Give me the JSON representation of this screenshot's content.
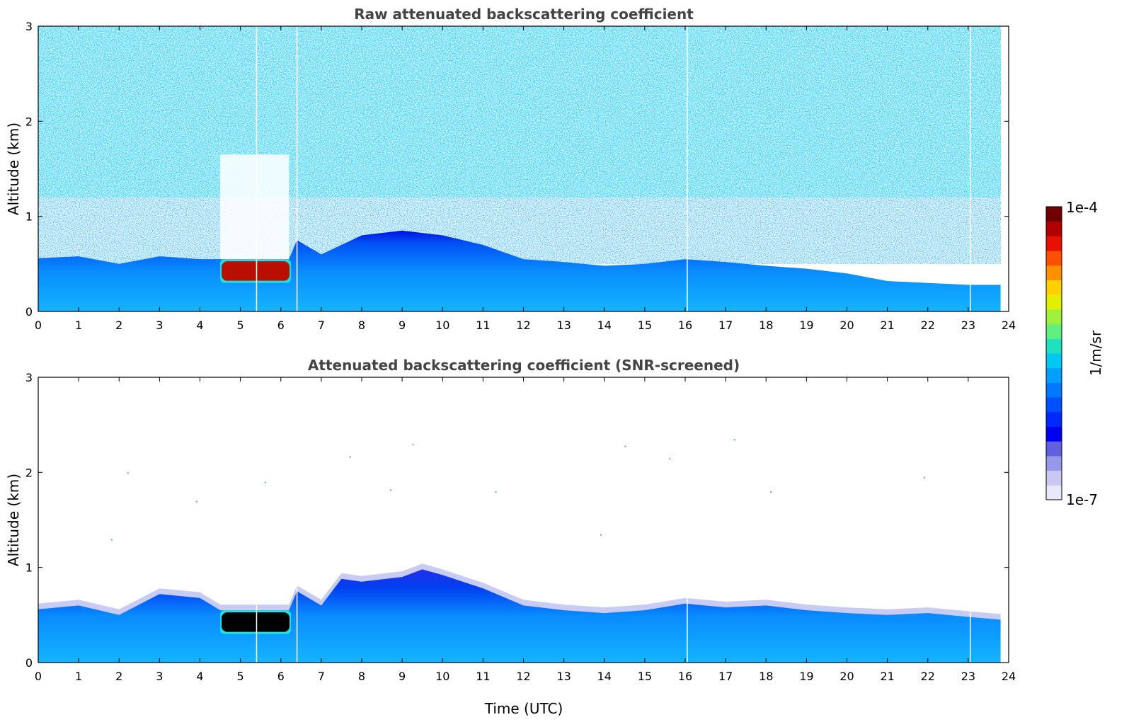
{
  "chart_data": [
    {
      "type": "heatmap",
      "title": "Raw attenuated backscattering coefficient",
      "xlabel": "",
      "ylabel": "Altitude (km)",
      "xlim": [
        0,
        24
      ],
      "ylim": [
        0,
        3
      ],
      "xticks": [
        "0",
        "1",
        "2",
        "3",
        "4",
        "5",
        "6",
        "7",
        "8",
        "9",
        "10",
        "11",
        "12",
        "13",
        "14",
        "15",
        "16",
        "17",
        "18",
        "19",
        "20",
        "21",
        "22",
        "23",
        "24"
      ],
      "yticks": [
        "0",
        "1",
        "2",
        "3"
      ],
      "data_extent_x": [
        0,
        23.8
      ],
      "boundary_layer_top_km": [
        {
          "x": 0,
          "y": 0.56
        },
        {
          "x": 1,
          "y": 0.58
        },
        {
          "x": 2,
          "y": 0.5
        },
        {
          "x": 3,
          "y": 0.58
        },
        {
          "x": 4,
          "y": 0.55
        },
        {
          "x": 4.5,
          "y": 0.55
        },
        {
          "x": 6.2,
          "y": 0.55
        },
        {
          "x": 6.4,
          "y": 0.75
        },
        {
          "x": 7,
          "y": 0.6
        },
        {
          "x": 8,
          "y": 0.8
        },
        {
          "x": 9,
          "y": 0.85
        },
        {
          "x": 10,
          "y": 0.8
        },
        {
          "x": 11,
          "y": 0.7
        },
        {
          "x": 12,
          "y": 0.55
        },
        {
          "x": 13,
          "y": 0.52
        },
        {
          "x": 14,
          "y": 0.48
        },
        {
          "x": 15,
          "y": 0.5
        },
        {
          "x": 16,
          "y": 0.55
        },
        {
          "x": 17,
          "y": 0.52
        },
        {
          "x": 18,
          "y": 0.48
        },
        {
          "x": 19,
          "y": 0.45
        },
        {
          "x": 20,
          "y": 0.4
        },
        {
          "x": 21,
          "y": 0.32
        },
        {
          "x": 22,
          "y": 0.3
        },
        {
          "x": 23,
          "y": 0.28
        },
        {
          "x": 23.8,
          "y": 0.28
        }
      ],
      "cloud_layer": {
        "x_start": 4.5,
        "x_end": 6.25,
        "y_bottom": 0.33,
        "y_top": 0.52,
        "color": "#b81000"
      },
      "low_signal_gap": {
        "x_start": 4.5,
        "x_end": 6.2,
        "y_bottom": 0.52,
        "y_top": 1.65
      },
      "missing_profiles_x": [
        5.4,
        6.4,
        16.05,
        23.05
      ],
      "noise": "scattered noise from 0.5 km to 3 km"
    },
    {
      "type": "heatmap",
      "title": "Attenuated backscattering coefficient (SNR-screened)",
      "xlabel": "Time (UTC)",
      "ylabel": "Altitude (km)",
      "xlim": [
        0,
        24
      ],
      "ylim": [
        0,
        3
      ],
      "xticks": [
        "0",
        "1",
        "2",
        "3",
        "4",
        "5",
        "6",
        "7",
        "8",
        "9",
        "10",
        "11",
        "12",
        "13",
        "14",
        "15",
        "16",
        "17",
        "18",
        "19",
        "20",
        "21",
        "22",
        "23",
        "24"
      ],
      "yticks": [
        "0",
        "1",
        "2",
        "3"
      ],
      "data_extent_x": [
        0,
        23.8
      ],
      "boundary_layer_top_km": [
        {
          "x": 0,
          "y": 0.56
        },
        {
          "x": 1,
          "y": 0.6
        },
        {
          "x": 2,
          "y": 0.5
        },
        {
          "x": 3,
          "y": 0.72
        },
        {
          "x": 4,
          "y": 0.68
        },
        {
          "x": 4.5,
          "y": 0.55
        },
        {
          "x": 6.2,
          "y": 0.55
        },
        {
          "x": 6.4,
          "y": 0.75
        },
        {
          "x": 7,
          "y": 0.6
        },
        {
          "x": 7.5,
          "y": 0.88
        },
        {
          "x": 8,
          "y": 0.85
        },
        {
          "x": 9,
          "y": 0.9
        },
        {
          "x": 9.5,
          "y": 0.98
        },
        {
          "x": 10,
          "y": 0.92
        },
        {
          "x": 11,
          "y": 0.78
        },
        {
          "x": 12,
          "y": 0.6
        },
        {
          "x": 13,
          "y": 0.55
        },
        {
          "x": 14,
          "y": 0.52
        },
        {
          "x": 15,
          "y": 0.55
        },
        {
          "x": 16,
          "y": 0.62
        },
        {
          "x": 17,
          "y": 0.58
        },
        {
          "x": 18,
          "y": 0.6
        },
        {
          "x": 19,
          "y": 0.55
        },
        {
          "x": 20,
          "y": 0.52
        },
        {
          "x": 21,
          "y": 0.5
        },
        {
          "x": 22,
          "y": 0.52
        },
        {
          "x": 23,
          "y": 0.48
        },
        {
          "x": 23.8,
          "y": 0.45
        }
      ],
      "cloud_layer": {
        "x_start": 4.5,
        "x_end": 6.25,
        "y_bottom": 0.33,
        "y_top": 0.52,
        "color": "#000000"
      },
      "missing_profiles_x": [
        5.4,
        6.4,
        16.05,
        23.05
      ],
      "isolated_points": [
        {
          "x": 1.8,
          "y": 1.3
        },
        {
          "x": 2.2,
          "y": 2.0
        },
        {
          "x": 3.9,
          "y": 1.7
        },
        {
          "x": 5.6,
          "y": 1.9
        },
        {
          "x": 7.7,
          "y": 2.17
        },
        {
          "x": 8.7,
          "y": 1.82
        },
        {
          "x": 9.25,
          "y": 2.3
        },
        {
          "x": 11.3,
          "y": 1.8
        },
        {
          "x": 13.9,
          "y": 1.35
        },
        {
          "x": 14.5,
          "y": 2.28
        },
        {
          "x": 15.6,
          "y": 2.15
        },
        {
          "x": 17.2,
          "y": 2.35
        },
        {
          "x": 18.1,
          "y": 1.8
        },
        {
          "x": 21.9,
          "y": 1.95
        }
      ]
    }
  ],
  "colorbar": {
    "max_label": "1e-4",
    "min_label": "1e-7",
    "units_label": "1/m/sr",
    "colors": [
      "#e8e8f8",
      "#c8c8f0",
      "#9898e8",
      "#6060e0",
      "#0000f0",
      "#0028ff",
      "#0050ff",
      "#0078ff",
      "#00a0ff",
      "#00c8f0",
      "#20e0c0",
      "#60f080",
      "#a0f040",
      "#e0f000",
      "#ffd000",
      "#ff9000",
      "#ff5000",
      "#e81000",
      "#b00000",
      "#700000"
    ]
  }
}
